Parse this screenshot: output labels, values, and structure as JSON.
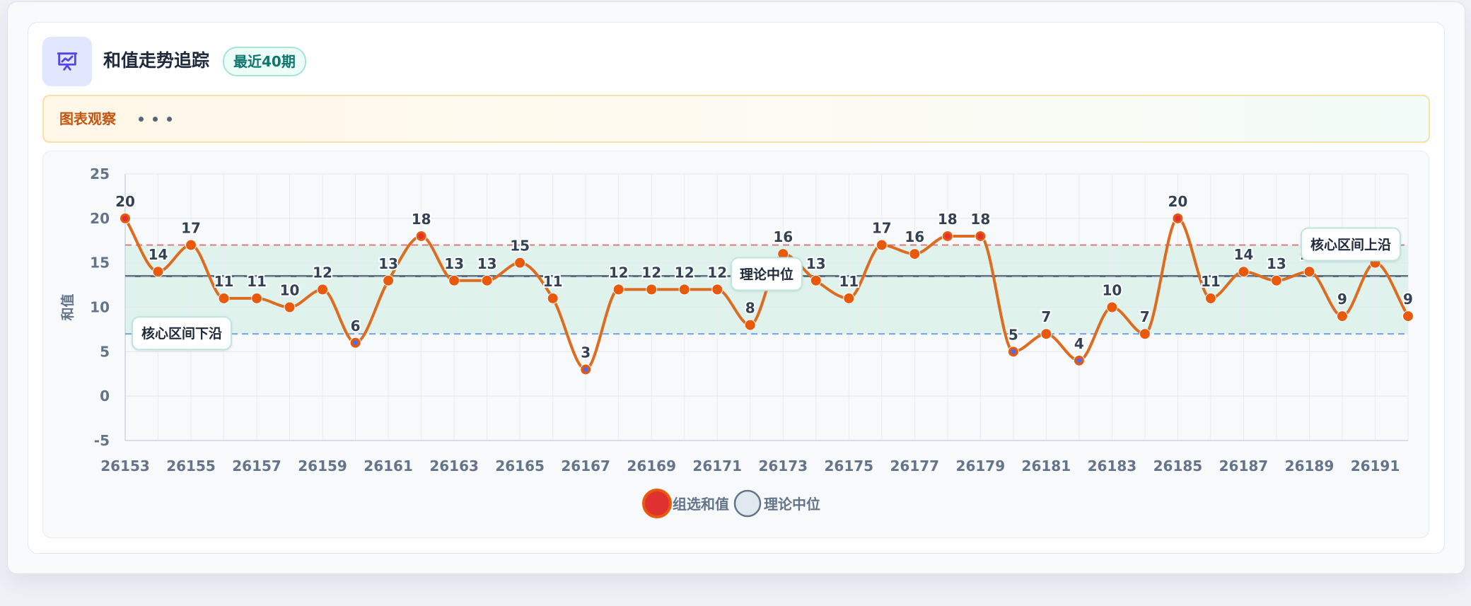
{
  "header": {
    "title": "和值走势追踪",
    "badge": "最近40期",
    "icon": "presentation-chart-icon"
  },
  "observation": {
    "title": "图表观察",
    "more_icon": "ellipsis-icon"
  },
  "colors": {
    "line": "#dd6b20",
    "point": "#e8590c",
    "point_high": "#e03131",
    "point_low": "#4c6ef5",
    "upper_line": "#e26a6a",
    "lower_line": "#6c9cf0",
    "median_line": "#5f6b7c",
    "band": "#d7efe7"
  },
  "chart_data": {
    "type": "line",
    "title": "",
    "xlabel": "",
    "ylabel": "和值",
    "ylim": [
      -5,
      25
    ],
    "yticks": [
      -5,
      0,
      5,
      10,
      15,
      20,
      25
    ],
    "grid": true,
    "legend_position": "bottom",
    "x": [
      26153,
      26154,
      26155,
      26156,
      26157,
      26158,
      26159,
      26160,
      26161,
      26162,
      26163,
      26164,
      26165,
      26166,
      26167,
      26168,
      26169,
      26170,
      26171,
      26172,
      26173,
      26174,
      26175,
      26176,
      26177,
      26178,
      26179,
      26180,
      26181,
      26182,
      26183,
      26184,
      26185,
      26186,
      26187,
      26188,
      26189,
      26190,
      26191,
      26192
    ],
    "xtick_labels": [
      "26153",
      "26155",
      "26157",
      "26159",
      "26161",
      "26163",
      "26165",
      "26167",
      "26169",
      "26171",
      "26173",
      "26175",
      "26177",
      "26179",
      "26181",
      "26183",
      "26185",
      "26187",
      "26189",
      "26191"
    ],
    "series": [
      {
        "name": "组选和值",
        "values": [
          20,
          14,
          17,
          11,
          11,
          10,
          12,
          6,
          13,
          18,
          13,
          13,
          15,
          11,
          3,
          12,
          12,
          12,
          12,
          8,
          16,
          13,
          11,
          17,
          16,
          18,
          18,
          5,
          7,
          4,
          10,
          7,
          20,
          11,
          14,
          13,
          14,
          9,
          15,
          9
        ]
      }
    ],
    "legend": [
      "组选和值",
      "理论中位"
    ],
    "reference_lines": [
      {
        "label": "理论中位",
        "value": 13.5,
        "style": "solid"
      },
      {
        "label": "核心区间上沿",
        "value": 17,
        "style": "dashed"
      },
      {
        "label": "核心区间下沿",
        "value": 7,
        "style": "dashed"
      }
    ],
    "band": [
      7,
      17
    ]
  }
}
